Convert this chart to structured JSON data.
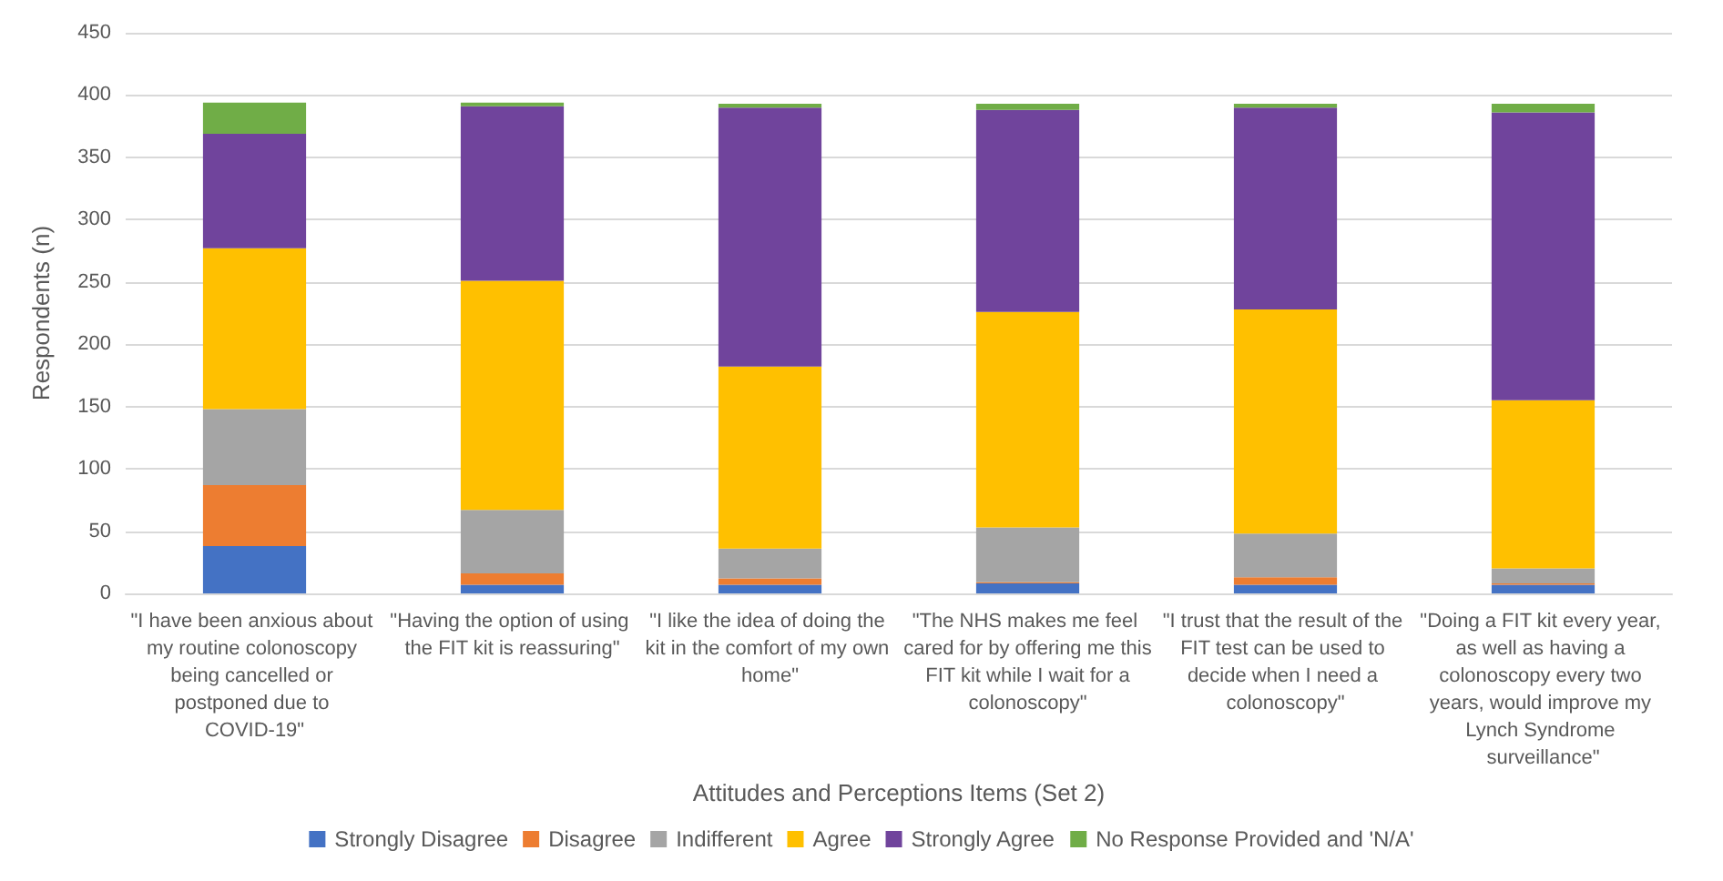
{
  "chart_data": {
    "type": "bar",
    "stacked": true,
    "xlabel": "Attitudes and Perceptions Items (Set 2)",
    "ylabel": "Respondents (n)",
    "categories": [
      "\"I have been anxious about my routine colonoscopy being cancelled or postponed due to COVID-19\"",
      "\"Having the option of using the FIT kit is reassuring\"",
      "\"I like the idea of doing the kit in the comfort of my own home\"",
      "\"The NHS makes me feel cared for by offering me this FIT kit while I wait for a colonoscopy\"",
      "\"I trust that the result of the FIT test can be used to decide when I need a colonoscopy\"",
      "\"Doing a FIT kit every year, as well as having a colonoscopy every two years, would improve my Lynch Syndrome surveillance\""
    ],
    "series": [
      {
        "name": "Strongly Disagree",
        "color": "#4472c4",
        "values": [
          38,
          7,
          7,
          8,
          7,
          7
        ]
      },
      {
        "name": "Disagree",
        "color": "#ed7d31",
        "values": [
          49,
          9,
          5,
          1,
          6,
          1
        ]
      },
      {
        "name": "Indifferent",
        "color": "#a5a5a5",
        "values": [
          61,
          51,
          24,
          44,
          35,
          12
        ]
      },
      {
        "name": "Agree",
        "color": "#ffc000",
        "values": [
          129,
          184,
          146,
          173,
          180,
          135
        ]
      },
      {
        "name": "Strongly Agree",
        "color": "#70449c",
        "values": [
          92,
          140,
          208,
          162,
          162,
          231
        ]
      },
      {
        "name": "No Response Provided and 'N/A'",
        "color": "#70ad47",
        "values": [
          25,
          3,
          3,
          5,
          3,
          7
        ]
      }
    ],
    "ylim": [
      0,
      450
    ],
    "yticks": [
      0,
      50,
      100,
      150,
      200,
      250,
      300,
      350,
      400,
      450
    ],
    "grid": "y",
    "legend": "bottom"
  }
}
